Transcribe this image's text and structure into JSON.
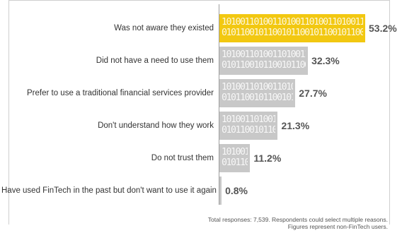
{
  "chart_data": {
    "type": "bar",
    "orientation": "horizontal",
    "categories": [
      "Was not aware they existed",
      "Did not have a need to use them",
      "Prefer to use a traditional financial services provider",
      "Don't understand how they work",
      "Do not trust them",
      "Have used FinTech in the past but don't want to use it again"
    ],
    "values": [
      53.2,
      32.3,
      27.7,
      21.3,
      11.2,
      0.8
    ],
    "value_labels": [
      "53.2%",
      "32.3%",
      "27.7%",
      "21.3%",
      "11.2%",
      "0.8%"
    ],
    "highlight_index": 0,
    "xlim": [
      0,
      53.2
    ],
    "colors": {
      "highlight": "#f2c811",
      "default": "#c8c8c8",
      "value_text": "#555555"
    },
    "bar_pattern": "1010011010011010011010011010011010011010",
    "footnote_lines": [
      "Total responses: 7,539. Respondents could select multiple reasons.",
      "Figures represent non-FinTech users."
    ]
  }
}
